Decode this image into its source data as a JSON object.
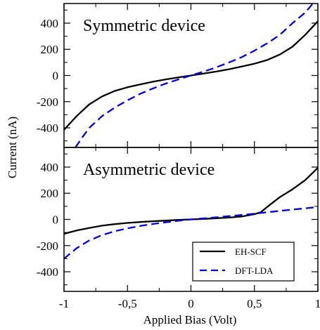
{
  "chart_data": {
    "type": "line",
    "xlabel": "Applied Bias (Volt)",
    "ylabel": "Current (nA)",
    "xlim": [
      -1,
      1
    ],
    "x_ticks": [
      "-1",
      "-0,5",
      "0",
      "0,5",
      "1"
    ],
    "legend": {
      "placement": "bottom-right"
    },
    "panels": [
      {
        "title": "Symmetric device",
        "ylim": [
          -550,
          550
        ],
        "y_ticks": [
          "400",
          "200",
          "0",
          "-200",
          "-400"
        ],
        "series": [
          {
            "name": "EH-SCF",
            "color": "#000000",
            "dash": "solid",
            "x": [
              -1,
              -0.9,
              -0.8,
              -0.7,
              -0.6,
              -0.5,
              -0.4,
              -0.3,
              -0.2,
              -0.1,
              0,
              0.1,
              0.2,
              0.3,
              0.4,
              0.5,
              0.6,
              0.7,
              0.8,
              0.9,
              1
            ],
            "y": [
              -415,
              -310,
              -220,
              -160,
              -118,
              -90,
              -68,
              -48,
              -30,
              -15,
              0,
              15,
              30,
              48,
              68,
              90,
              118,
              160,
              220,
              310,
              415
            ]
          },
          {
            "name": "DFT-LDA",
            "color": "#0000dd",
            "dash": "dashed",
            "x": [
              -0.91,
              -0.85,
              -0.8,
              -0.7,
              -0.6,
              -0.5,
              -0.4,
              -0.3,
              -0.2,
              -0.1,
              0,
              0.1,
              0.2,
              0.3,
              0.4,
              0.5,
              0.6,
              0.7,
              0.8,
              0.9,
              0.96
            ],
            "y": [
              -550,
              -465,
              -400,
              -310,
              -245,
              -190,
              -140,
              -100,
              -62,
              -30,
              0,
              30,
              62,
              100,
              140,
              190,
              245,
              310,
              400,
              480,
              550
            ]
          }
        ]
      },
      {
        "title": "Asymmetric device",
        "ylim": [
          -550,
          550
        ],
        "y_ticks": [
          "400",
          "200",
          "0",
          "-200",
          "-400"
        ],
        "series": [
          {
            "name": "EH-SCF",
            "color": "#000000",
            "dash": "solid",
            "x": [
              -1,
              -0.9,
              -0.8,
              -0.7,
              -0.6,
              -0.5,
              -0.4,
              -0.3,
              -0.2,
              -0.1,
              0,
              0.1,
              0.2,
              0.3,
              0.4,
              0.5,
              0.55,
              0.6,
              0.7,
              0.8,
              0.9,
              1
            ],
            "y": [
              -110,
              -85,
              -65,
              -48,
              -36,
              -27,
              -20,
              -14,
              -9,
              -4,
              0,
              4,
              9,
              14,
              22,
              40,
              55,
              95,
              170,
              230,
              300,
              395
            ]
          },
          {
            "name": "DFT-LDA",
            "color": "#0000dd",
            "dash": "dashed",
            "x": [
              -1,
              -0.9,
              -0.8,
              -0.7,
              -0.6,
              -0.5,
              -0.4,
              -0.3,
              -0.2,
              -0.1,
              0,
              0.1,
              0.2,
              0.3,
              0.4,
              0.5,
              0.6,
              0.7,
              0.8,
              0.9,
              1
            ],
            "y": [
              -300,
              -220,
              -160,
              -120,
              -90,
              -68,
              -50,
              -35,
              -22,
              -10,
              0,
              8,
              16,
              25,
              34,
              44,
              55,
              65,
              75,
              85,
              95
            ]
          }
        ]
      }
    ]
  }
}
